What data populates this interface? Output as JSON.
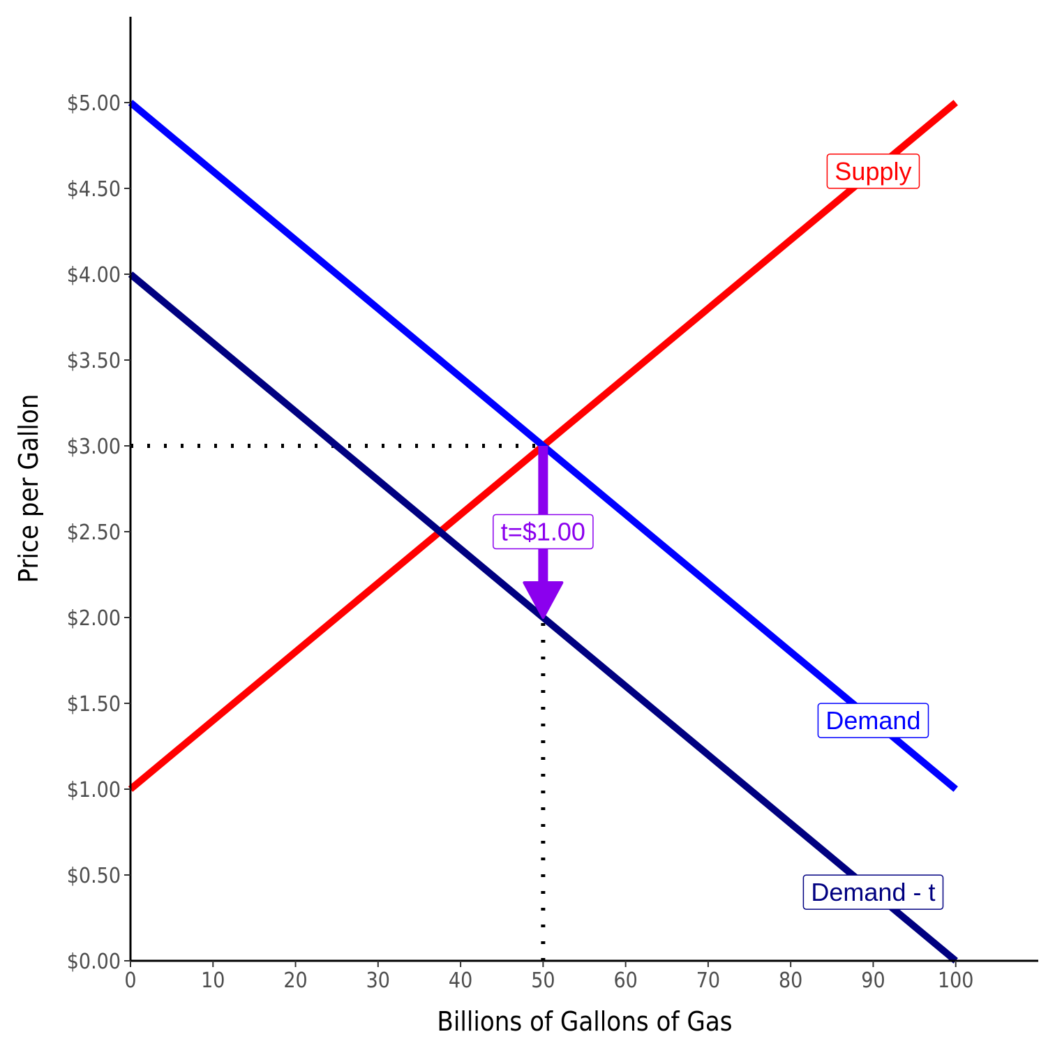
{
  "chart_data": {
    "type": "line",
    "xlabel": "Billions of Gallons of Gas",
    "ylabel": "Price per Gallon",
    "xlim": [
      0,
      110
    ],
    "ylim": [
      0,
      5.5
    ],
    "x_ticks": [
      0,
      10,
      20,
      30,
      40,
      50,
      60,
      70,
      80,
      90,
      100
    ],
    "x_tick_labels": [
      "0",
      "10",
      "20",
      "30",
      "40",
      "50",
      "60",
      "70",
      "80",
      "90",
      "100"
    ],
    "y_ticks": [
      0,
      0.5,
      1,
      1.5,
      2,
      2.5,
      3,
      3.5,
      4,
      4.5,
      5
    ],
    "y_tick_labels": [
      "$0.00",
      "$0.50",
      "$1.00",
      "$1.50",
      "$2.00",
      "$2.50",
      "$3.00",
      "$3.50",
      "$4.00",
      "$4.50",
      "$5.00"
    ],
    "grid": false,
    "series": [
      {
        "name": "Supply",
        "color": "#ff0000",
        "x": [
          0,
          100
        ],
        "y": [
          1,
          5
        ]
      },
      {
        "name": "Demand",
        "color": "#0000ff",
        "x": [
          0,
          100
        ],
        "y": [
          5,
          1
        ]
      },
      {
        "name": "Demand - t",
        "color": "#000080",
        "x": [
          0,
          100
        ],
        "y": [
          4,
          0
        ]
      }
    ],
    "curve_labels": [
      {
        "text": "Supply",
        "x": 90,
        "y": 4.6,
        "color": "#ff0000"
      },
      {
        "text": "Demand",
        "x": 90,
        "y": 1.4,
        "color": "#0000ff"
      },
      {
        "text": "Demand - t",
        "x": 90,
        "y": 0.4,
        "color": "#000080"
      }
    ],
    "annotations": [
      {
        "type": "dotted-hline",
        "y": 3,
        "x_from": 0,
        "x_to": 50,
        "color": "#000000"
      },
      {
        "type": "dotted-vline",
        "x": 50,
        "y_from": 0,
        "y_to": 2,
        "color": "#000000"
      },
      {
        "type": "arrow",
        "x": 50,
        "y_from": 3,
        "y_to": 2,
        "color": "#8b00ee"
      },
      {
        "type": "label",
        "text": "t=$1.00",
        "x": 50,
        "y": 2.5,
        "color": "#8b00ee"
      }
    ]
  }
}
